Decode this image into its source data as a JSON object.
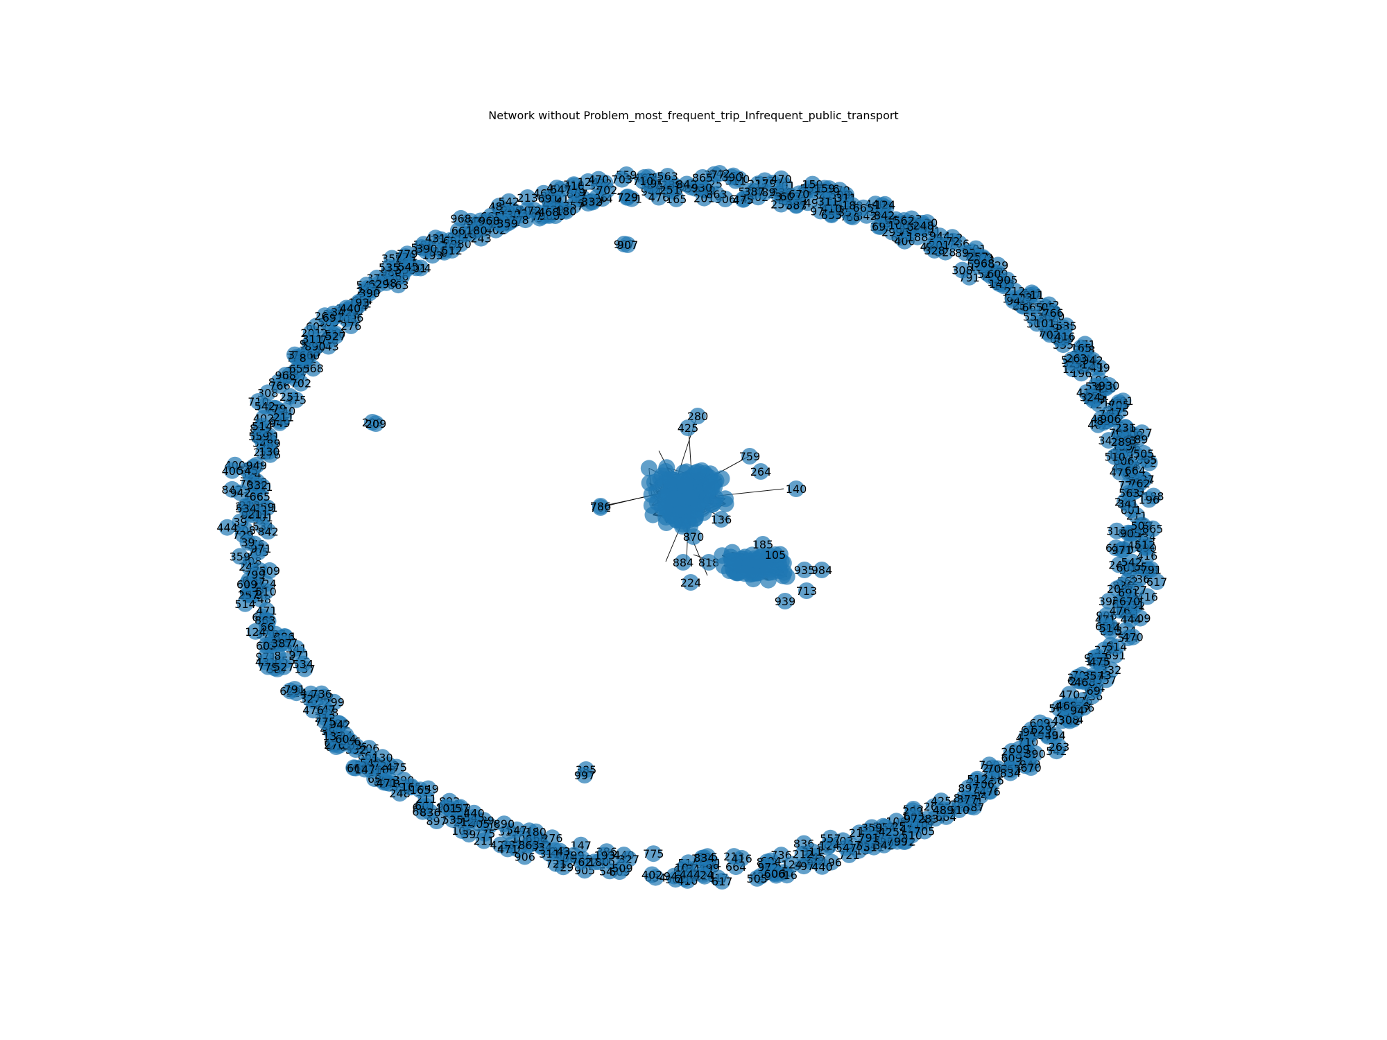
{
  "figure": {
    "title": "Network without Problem_most_frequent_trip_Infrequent_public_transport"
  },
  "colors": {
    "node": "#1f77b4",
    "edge": "#000000",
    "background": "#ffffff"
  },
  "network": {
    "layout": "spring layout: isolated nodes on an outer ellipse, two dense connected clusters near the center",
    "visible_labels": {
      "cluster_a": [
        "280",
        "425",
        "759",
        "264",
        "140",
        "762",
        "786",
        "136",
        "870",
        "884",
        "818"
      ],
      "cluster_b": [
        "935",
        "984",
        "713",
        "939",
        "224",
        "185",
        "105"
      ],
      "isolated_pairs": [
        "209",
        "907",
        "385",
        "997"
      ],
      "ring_top": [
        "257",
        "248",
        "779",
        "836",
        "762",
        "324",
        "476",
        "311",
        "489",
        "906",
        "514",
        "563",
        "972",
        "468",
        "670",
        "444",
        "213",
        "387",
        "968",
        "165",
        "410",
        "180",
        "930",
        "311",
        "263",
        "72",
        "893",
        "617"
      ],
      "ring_left": [
        "94",
        "130",
        "559",
        "865",
        "547",
        "971",
        "775",
        "890",
        "332",
        "341",
        "327",
        "710",
        "377",
        "359",
        "691",
        "510",
        "562",
        "124",
        "791",
        "729",
        "211",
        "604",
        "949",
        "834",
        "842",
        "471",
        "193",
        "276",
        "440",
        "545",
        "534",
        "289",
        "603",
        "655",
        "8"
      ],
      "ring_right": [
        "137",
        "654",
        "606",
        "431",
        "527",
        "39",
        "524",
        "721",
        "66",
        "703",
        "535",
        "475",
        "905",
        "897",
        "705",
        "629",
        "124",
        "196",
        "208",
        "357",
        "557",
        "664",
        "863",
        "547",
        "766",
        "69",
        "601",
        "159",
        "201",
        "799",
        "702",
        "542",
        "243",
        "106",
        "308",
        "416",
        "736"
      ],
      "ring_bottom": [
        "944",
        "402",
        "470",
        "328",
        "251",
        "425",
        "509",
        "386",
        "512",
        "147",
        "188",
        "505",
        "542",
        "665",
        "609",
        "400",
        "390",
        "342",
        "231",
        "980",
        "942",
        "299",
        "609",
        "212",
        "101"
      ]
    }
  }
}
